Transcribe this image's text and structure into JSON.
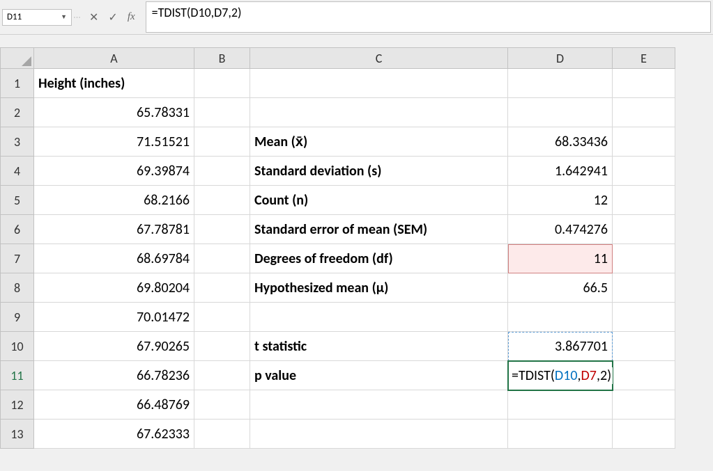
{
  "formula_bar": {
    "cell_ref": "D11",
    "formula": "=TDIST(D10,D7,2)"
  },
  "columns": [
    "A",
    "B",
    "C",
    "D",
    "E"
  ],
  "rows": [
    "1",
    "2",
    "3",
    "4",
    "5",
    "6",
    "7",
    "8",
    "9",
    "10",
    "11",
    "12",
    "13"
  ],
  "cells": {
    "A1": {
      "v": "Height (inches)",
      "bold": true,
      "align": "left"
    },
    "A2": {
      "v": "65.78331",
      "align": "right"
    },
    "A3": {
      "v": "71.51521",
      "align": "right"
    },
    "A4": {
      "v": "69.39874",
      "align": "right"
    },
    "A5": {
      "v": "68.2166",
      "align": "right"
    },
    "A6": {
      "v": "67.78781",
      "align": "right"
    },
    "A7": {
      "v": "68.69784",
      "align": "right"
    },
    "A8": {
      "v": "69.80204",
      "align": "right"
    },
    "A9": {
      "v": "70.01472",
      "align": "right"
    },
    "A10": {
      "v": "67.90265",
      "align": "right"
    },
    "A11": {
      "v": "66.78236",
      "align": "right"
    },
    "A12": {
      "v": "66.48769",
      "align": "right"
    },
    "A13": {
      "v": "67.62333",
      "align": "right"
    },
    "C3": {
      "v": "Mean (x̄)",
      "bold": true,
      "align": "left"
    },
    "C4": {
      "v": "Standard deviation (s)",
      "bold": true,
      "align": "left"
    },
    "C5": {
      "v": "Count (n)",
      "bold": true,
      "align": "left"
    },
    "C6": {
      "v": "Standard error of mean (SEM)",
      "bold": true,
      "align": "left"
    },
    "C7": {
      "v": "Degrees of freedom (df)",
      "bold": true,
      "align": "left"
    },
    "C8": {
      "v": "Hypothesized mean (μ)",
      "bold": true,
      "align": "left"
    },
    "C10": {
      "v": "t statistic",
      "bold": true,
      "align": "left"
    },
    "C11": {
      "v": "p value",
      "bold": true,
      "align": "left"
    },
    "D3": {
      "v": "68.33436",
      "align": "right"
    },
    "D4": {
      "v": "1.642941",
      "align": "right"
    },
    "D5": {
      "v": "12",
      "align": "right"
    },
    "D6": {
      "v": "0.474276",
      "align": "right"
    },
    "D7": {
      "v": "11",
      "align": "right"
    },
    "D8": {
      "v": "66.5",
      "align": "right"
    },
    "D10": {
      "v": "3.867701",
      "align": "right"
    }
  },
  "d11_formula": {
    "prefix": "=TDIST(",
    "ref1": "D10",
    "sep1": ",",
    "ref2": "D7",
    "sep2": ",2)"
  },
  "colors": {
    "grid_border": "#d8d8d8",
    "header_bg": "#e6e6e6",
    "header_border": "#c2c2c2",
    "selection_green": "#217346",
    "ref_blue": "#0070c0",
    "ref_red": "#c00000",
    "d7_highlight_bg": "#fdeaea",
    "d7_highlight_border": "#d08080",
    "d10_highlight_border": "#5b9bd5"
  }
}
